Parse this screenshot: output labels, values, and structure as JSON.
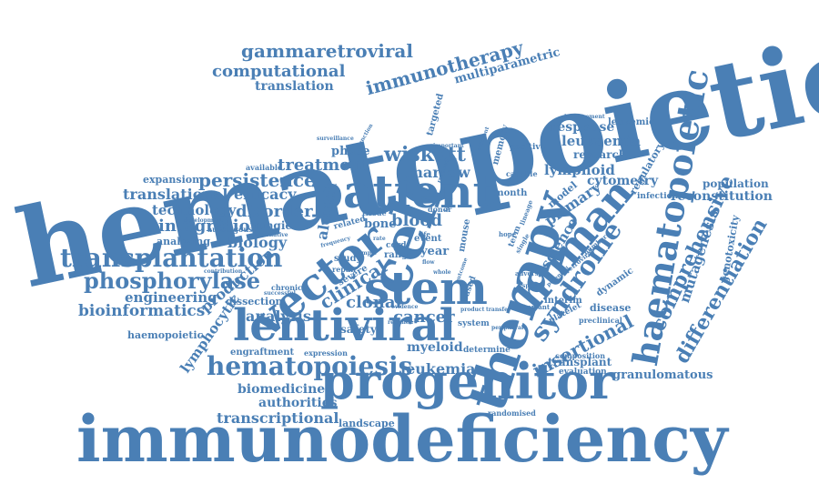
{
  "colors": {
    "word": "#4a7fb5",
    "background": "#ffffff"
  },
  "words": {
    "hematopoietic": "hematopoietic",
    "immunodeficiency": "immunodeficiency",
    "progenitor": "progenitor",
    "lentiviral": "lentiviral",
    "cell": "cell",
    "therapy": "therapy",
    "patient": "patient",
    "stem": "stem",
    "vector": "vector",
    "human": "human",
    "haematopoietic": "haematopoietic",
    "hematopoiesis": "hematopoiesis",
    "transplantation": "transplantation",
    "phosphorylase": "phosphorylase",
    "syndrome": "syndrome",
    "comprehensive": "comprehensive",
    "differentiation": "differentiation",
    "insertional": "insertional",
    "immunotherapy": "immunotherapy",
    "gammaretroviral": "gammaretroviral",
    "computational": "computational",
    "translation": "translation",
    "multiparametric": "multiparametric",
    "wiskott": "wiskott",
    "marrow": "marrow",
    "treatment": "treatment",
    "persistence": "persistence",
    "translational": "translational",
    "efficacy": "efficacy",
    "technology": "technology",
    "disorder": "disorder",
    "integration": "integration",
    "biology": "biology",
    "analyzing": "analyzing",
    "engineering": "engineering",
    "bioinformatics": "bioinformatics",
    "haemopoietic": "haemopoietic",
    "production": "production",
    "lymphocytic": "lymphocytic",
    "analysis": "analysis",
    "clinical": "clinical",
    "clonal": "clonal",
    "cancer": "cancer",
    "myeloid": "myeloid",
    "leukemia": "leukemia",
    "biomedicine": "biomedicine",
    "authorities": "authorities",
    "transcriptional": "transcriptional",
    "landscape": "landscape",
    "granulomatous": "granulomatous",
    "transplant": "transplant",
    "evaluation": "evaluation",
    "leukaemia": "leukaemia",
    "response": "response",
    "research": "research",
    "lymphoid": "lymphoid",
    "cytometry": "cytometry",
    "primary": "primary",
    "science": "science",
    "model": "model",
    "population": "population",
    "reconstitution": "reconstitution",
    "mutagenesis": "mutagenesis",
    "genotoxicity": "genotoxicity",
    "regulatory": "regulatory",
    "blood": "blood",
    "aldrich": "aldrich",
    "targeted": "targeted",
    "mouse": "mouse",
    "memory": "memory",
    "expansion": "expansion",
    "phase": "phase",
    "bone": "bone",
    "engraftment": "engraftment",
    "safety": "safety",
    "dissection": "dissection",
    "study": "study",
    "severe": "severe",
    "year": "year",
    "event": "event",
    "range": "range",
    "month": "month",
    "system": "system",
    "determine": "determine",
    "interim": "interim",
    "disease": "disease",
    "dynamic": "dynamic",
    "leukemic": "leukemic",
    "positive": "positive",
    "capable": "capable",
    "infection": "infection",
    "platelet": "platelet",
    "preclinical": "preclinical",
    "randomised": "randomised",
    "composition": "composition",
    "expression": "expression",
    "autologous": "autologous",
    "available": "available",
    "chronic": "chronic",
    "repair": "repair",
    "based": "based",
    "cord": "cord",
    "related": "related",
    "donor": "donor",
    "tissue": "tissue",
    "aberrant": "aberrant",
    "improvement": "improvement",
    "adverse": "adverse",
    "lineage": "lineage",
    "term": "term",
    "single": "single",
    "surveillance": "surveillance",
    "development": "development",
    "alternative": "alternative",
    "contribution": "contribution",
    "successful": "successful",
    "function": "function",
    "important": "important",
    "retroviral": "retroviral",
    "number": "number",
    "specific": "specific",
    "whole": "whole",
    "transfer": "transfer",
    "peripheral": "peripheral",
    "product": "product",
    "regimen": "regimen",
    "flow": "flow",
    "life": "life",
    "rate": "rate",
    "hope": "hope",
    "mngie": "mngie",
    "efficient": "efficient",
    "outcome": "outcome",
    "evidence": "evidence",
    "frequency": "frequency",
    "sample": "sample",
    "reduced": "reduced",
    "label": "label",
    "potential": "potential"
  }
}
